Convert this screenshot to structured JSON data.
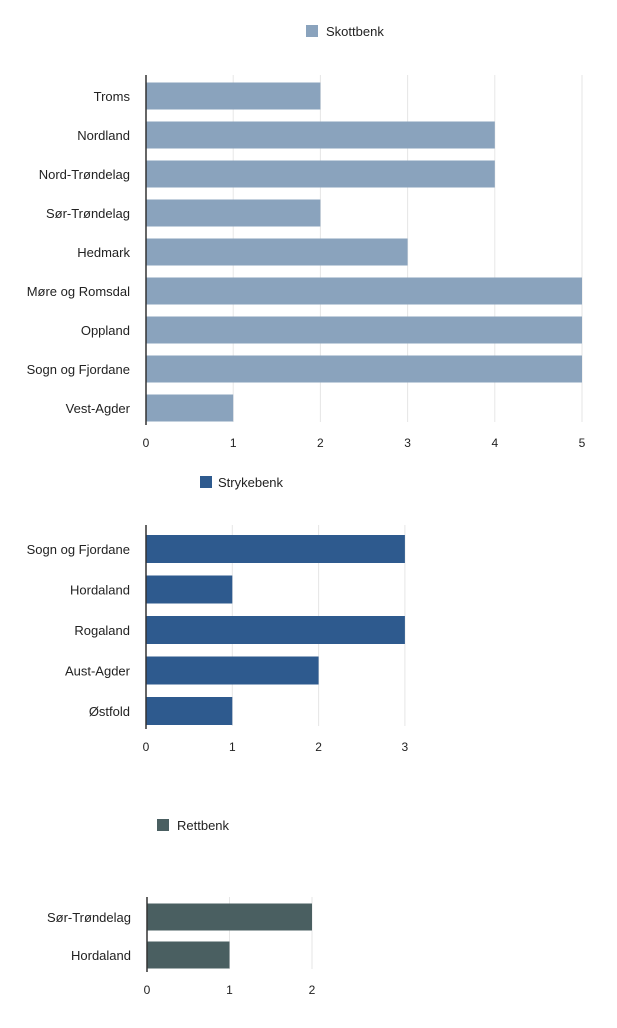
{
  "chart_data": [
    {
      "type": "bar",
      "orientation": "horizontal",
      "title": "",
      "xlabel": "",
      "ylabel": "",
      "legend": {
        "label": "Skottbenk",
        "color": "#8aa3bd",
        "placement": "top-center"
      },
      "categories": [
        "Troms",
        "Nordland",
        "Nord-Trøndelag",
        "Sør-Trøndelag",
        "Hedmark",
        "Møre og Romsdal",
        "Oppland",
        "Sogn og Fjordane",
        "Vest-Agder"
      ],
      "values": [
        2,
        4,
        4,
        2,
        3,
        5,
        5,
        5,
        1
      ],
      "ticks": [
        "0",
        "1",
        "2",
        "3",
        "4",
        "5"
      ],
      "xlim": [
        0,
        5
      ],
      "grid": true
    },
    {
      "type": "bar",
      "orientation": "horizontal",
      "title": "",
      "xlabel": "",
      "ylabel": "",
      "legend": {
        "label": "Strykebenk",
        "color": "#2e5a8e",
        "placement": "top-left"
      },
      "categories": [
        "Sogn og Fjordane",
        "Hordaland",
        "Rogaland",
        "Aust-Agder",
        "Østfold"
      ],
      "values": [
        3,
        1,
        3,
        2,
        1
      ],
      "ticks": [
        "0",
        "1",
        "2",
        "3"
      ],
      "xlim": [
        0,
        3
      ],
      "grid": true
    },
    {
      "type": "bar",
      "orientation": "horizontal",
      "title": "",
      "xlabel": "",
      "ylabel": "",
      "legend": {
        "label": "Rettbenk",
        "color": "#4a5f61",
        "placement": "top-left"
      },
      "categories": [
        "Sør-Trøndelag",
        "Hordaland"
      ],
      "values": [
        2,
        1
      ],
      "ticks": [
        "0",
        "1",
        "2"
      ],
      "xlim": [
        0,
        2
      ],
      "grid": true
    }
  ]
}
